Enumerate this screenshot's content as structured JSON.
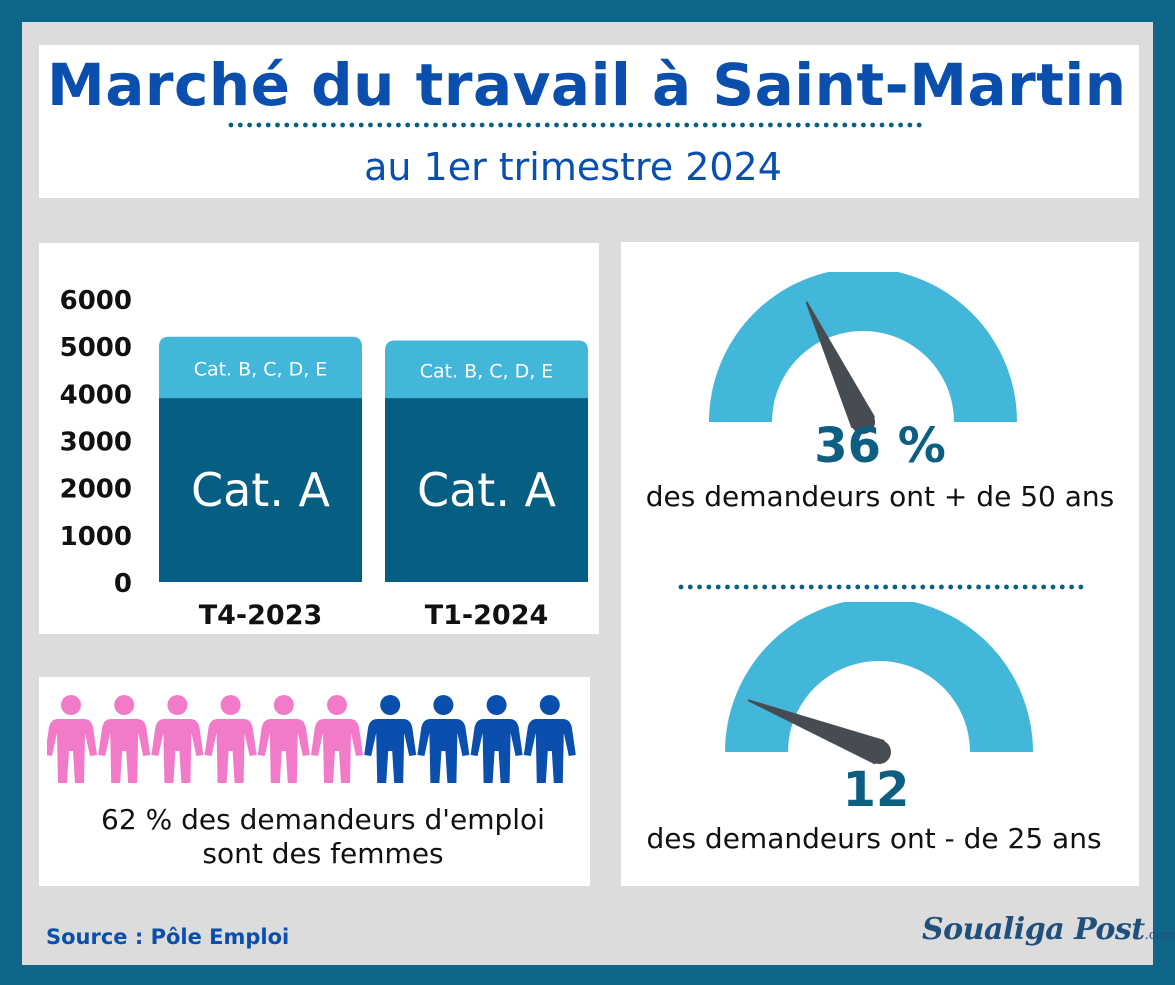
{
  "header": {
    "title": "Marché du travail à Saint-Martin",
    "subtitle": "au 1er trimestre 2024"
  },
  "chart_data": {
    "type": "bar",
    "stacked": true,
    "categories": [
      "T4-2023",
      "T1-2024"
    ],
    "series": [
      {
        "name": "Cat. A",
        "values": [
          3900,
          3900
        ],
        "color": "#065e83"
      },
      {
        "name": "Cat. B, C, D, E",
        "values": [
          1300,
          1220
        ],
        "color": "#43b7d9"
      }
    ],
    "yticks": [
      6000,
      5000,
      4000,
      3000,
      2000,
      1000,
      0
    ],
    "ylim": [
      0,
      6000
    ],
    "grid": false,
    "legend": "inside bars"
  },
  "women": {
    "women_count": 6,
    "men_count": 4,
    "women_color": "#f27bc9",
    "men_color": "#0a4fae",
    "line1": "62 % des demandeurs d'emploi",
    "line2": "sont des femmes"
  },
  "gauge_over_50": {
    "value": "36 %",
    "level": 0.36,
    "text": "des demandeurs ont + de 50 ans"
  },
  "gauge_under_25": {
    "value": "12",
    "level": 0.12,
    "text": "des demandeurs ont - de 25 ans"
  },
  "colors": {
    "gauge_arc": "#43b7d9",
    "needle": "#474c53",
    "dots": "#0d5f82"
  },
  "footer": {
    "source": "Source : Pôle Emploi",
    "logo_main": "Soualiga Post",
    "logo_tld": ".com"
  }
}
